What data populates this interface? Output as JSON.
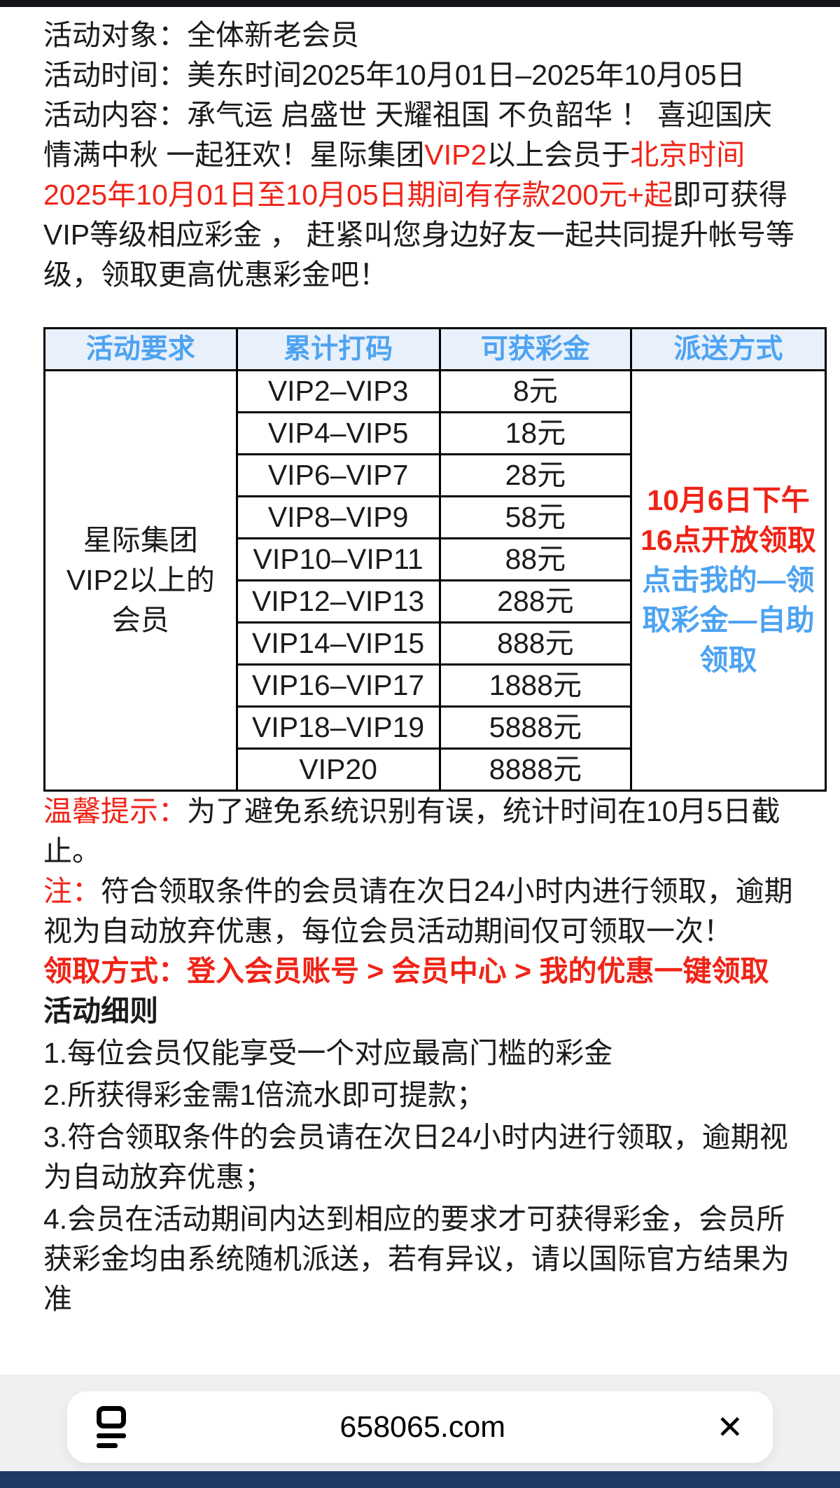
{
  "colors": {
    "red": "#f02317",
    "blue": "#4da3f2",
    "header_bg": "#e8f0fb",
    "overlay_gray": "#eef0f2",
    "navy": "#203a66",
    "top_strip": "#15161a"
  },
  "paragraphs": {
    "target_label": "活动对象：",
    "target_value": "全体新老会员",
    "time_label": "活动时间：",
    "time_value": "美东时间2025年10月01日–2025年10月05日",
    "content_label": "活动内容：",
    "content_s1": "承气运 启盛世 天耀祖国 不负韶华 ！ 喜迎国庆 情满中秋 一起狂欢！星际集团",
    "content_red1": "VIP2",
    "content_s2": "以上会员于",
    "content_red2": "北京时间2025年10月01日至10月05日期间有存款200元+起",
    "content_s3": "即可获得VIP等级相应彩金 ， 赶紧叫您身边好友一起共同提升帐号等级，领取更高优惠彩金吧！"
  },
  "table": {
    "headers": [
      "活动要求",
      "累计打码",
      "可获彩金",
      "派送方式"
    ],
    "requirement": "星际集团VIP2以上的会员",
    "rows": [
      {
        "tier": "VIP2–VIP3",
        "bonus": "8元"
      },
      {
        "tier": "VIP4–VIP5",
        "bonus": "18元"
      },
      {
        "tier": "VIP6–VIP7",
        "bonus": "28元"
      },
      {
        "tier": "VIP8–VIP9",
        "bonus": "58元"
      },
      {
        "tier": "VIP10–VIP11",
        "bonus": "88元"
      },
      {
        "tier": "VIP12–VIP13",
        "bonus": "288元"
      },
      {
        "tier": "VIP14–VIP15",
        "bonus": "888元"
      },
      {
        "tier": "VIP16–VIP17",
        "bonus": "1888元"
      },
      {
        "tier": "VIP18–VIP19",
        "bonus": "5888元"
      },
      {
        "tier": "VIP20",
        "bonus": "8888元"
      }
    ],
    "delivery_red": "10月6日下午16点开放领取",
    "delivery_blue": "点击我的—领取彩金—自助领取"
  },
  "notes": {
    "tip_label": "温馨提示：",
    "tip_text": "为了避免系统识别有误，统计时间在10月5日截止。",
    "note_label": "注：",
    "note_text": "符合领取条件的会员请在次日24小时内进行领取，逾期视为自动放弃优惠，每位会员活动期间仅可领取一次！",
    "claim_line": "领取方式：登入会员账号 > 会员中心 > 我的优惠一键领取"
  },
  "rules": {
    "title": "活动细则",
    "items": [
      "1.每位会员仅能享受一个对应最高门槛的彩金",
      "2.所获得彩金需1倍流水即可提款；",
      "3.符合领取条件的会员请在次日24小时内进行领取，逾期视为自动放弃优惠；",
      "4.会员在活动期间内达到相应的要求才可获得彩金，会员所获彩金均由系统随机派送，若有异议，请以国际官方结果为准"
    ]
  },
  "browser_bar": {
    "url": "658065.com",
    "close_icon": "✕"
  }
}
